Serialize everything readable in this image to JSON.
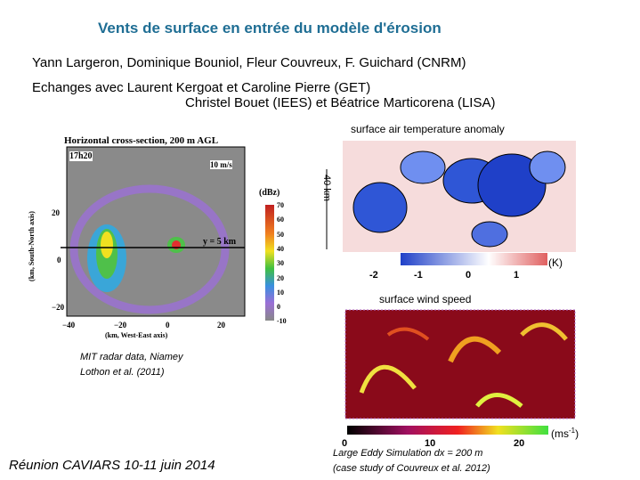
{
  "title": "Vents de surface en entrée du modèle d'érosion",
  "authors": [
    "Yann Largeron, Dominique Bouniol, Fleur Couvreux, F. Guichard (CNRM)",
    "Echanges avec Laurent Kergoat et Caroline Pierre (GET)",
    "Christel Bouet (IEES) et Béatrice Marticorena (LISA)"
  ],
  "radar_figure": {
    "title": "Horizontal cross-section, 200 m AGL",
    "time": "17h20",
    "vector_scale": "10 m/s",
    "section_label": "y = 5 km",
    "colorbar_unit": "(dBz)",
    "colorbar_ticks": [
      "70",
      "60",
      "50",
      "40",
      "30",
      "20",
      "10",
      "0",
      "-10"
    ],
    "x_label": "(km, West-East axis)",
    "y_label": "(km, South-North axis)",
    "x_ticks": [
      "−40",
      "−20",
      "0",
      "20"
    ],
    "y_ticks": [
      "20",
      "0",
      "−20"
    ],
    "caption": [
      "MIT radar data, Niamey",
      "Lothon et al. (2011)"
    ]
  },
  "temperature_panel": {
    "title": "surface air temperature anomaly",
    "scale": "40 km",
    "colorbar_ticks": [
      "-2",
      "-1",
      "0",
      "1"
    ],
    "unit": "(K)"
  },
  "wind_panel": {
    "title": "surface wind speed",
    "colorbar_ticks": [
      "0",
      "10",
      "20"
    ],
    "unit": "(ms",
    "unit_exponent": "-1",
    "unit_close": ")",
    "caption": [
      "Large Eddy Simulation dx = 200 m",
      "(case study of Couvreux et al. 2012)"
    ]
  },
  "footer": "Réunion CAVIARS 10-11 juin 2014"
}
